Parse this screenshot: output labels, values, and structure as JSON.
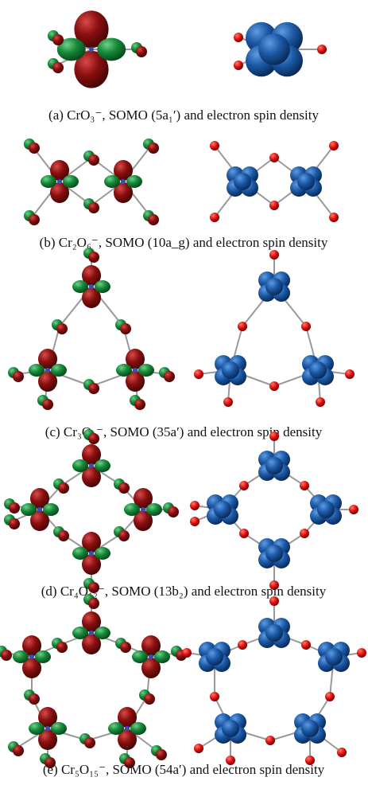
{
  "panels": [
    {
      "caption": "(a) CrO₃⁻, SOMO (5a₁′) and electron spin density"
    },
    {
      "caption": "(b) Cr₂O₆⁻, SOMO (10a_g) and electron spin density"
    },
    {
      "caption": "(c) Cr₃O₉⁻, SOMO (35a′) and electron spin density"
    },
    {
      "caption": "(d) Cr₄O₁₂⁻, SOMO (13b₂) and electron spin density"
    },
    {
      "caption": "(e) Cr₅O₁₅⁻, SOMO (54a′) and electron spin density"
    }
  ]
}
